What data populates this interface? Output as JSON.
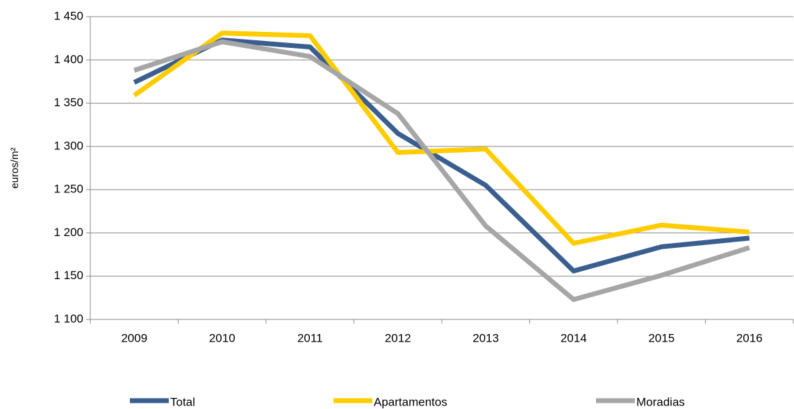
{
  "chart_data": {
    "type": "line",
    "y_label": "euros/m²",
    "categories": [
      "2009",
      "2010",
      "2011",
      "2012",
      "2013",
      "2014",
      "2015",
      "2016"
    ],
    "series": [
      {
        "name": "Total",
        "color": "#3a5f8f",
        "values": [
          1374,
          1423,
          1415,
          1315,
          1255,
          1156,
          1184,
          1194
        ]
      },
      {
        "name": "Apartamentos",
        "color": "#ffcc00",
        "values": [
          1359,
          1431,
          1428,
          1293,
          1297,
          1188,
          1209,
          1201
        ]
      },
      {
        "name": "Moradias",
        "color": "#a6a6a6",
        "values": [
          1388,
          1421,
          1404,
          1338,
          1208,
          1123,
          1151,
          1183
        ]
      }
    ],
    "ylim": [
      1100,
      1450
    ],
    "yticks": [
      {
        "value": 1100,
        "label": "1 100"
      },
      {
        "value": 1150,
        "label": "1 150"
      },
      {
        "value": 1200,
        "label": "1 200"
      },
      {
        "value": 1250,
        "label": "1 250"
      },
      {
        "value": 1300,
        "label": "1 300"
      },
      {
        "value": 1350,
        "label": "1 350"
      },
      {
        "value": 1400,
        "label": "1 400"
      },
      {
        "value": 1450,
        "label": "1 450"
      }
    ],
    "grid": true,
    "legend": "bottom"
  }
}
